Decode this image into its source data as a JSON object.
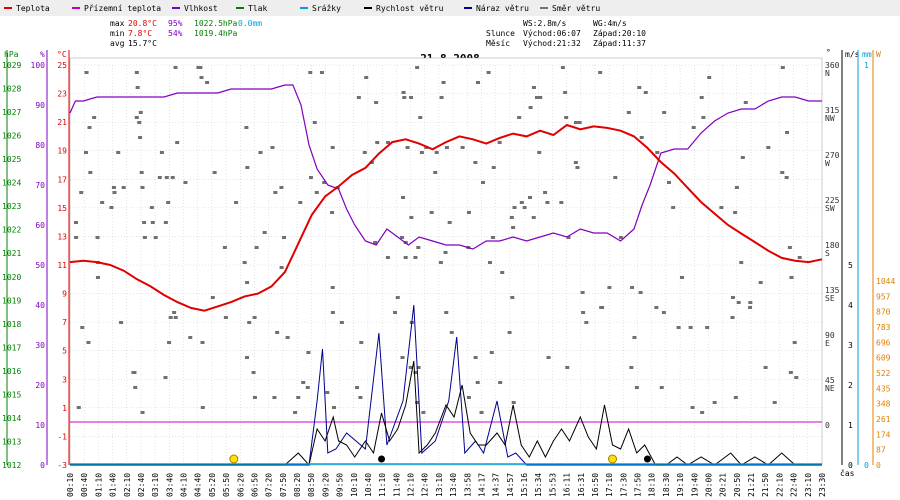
{
  "chart_data": {
    "type": "line",
    "title": "21.8.2008",
    "xlabel": "čas",
    "legend": [
      {
        "name": "Teplota",
        "color": "#e00000"
      },
      {
        "name": "Přízemní teplota",
        "color": "#c000c0"
      },
      {
        "name": "Vlhkost",
        "color": "#8000c0"
      },
      {
        "name": "Tlak",
        "color": "#008000"
      },
      {
        "name": "Srážky",
        "color": "#00a0e0"
      },
      {
        "name": "Rychlost větru",
        "color": "#000000"
      },
      {
        "name": "Náraz větru",
        "color": "#000090"
      },
      {
        "name": "Směr větru",
        "color": "#707070"
      }
    ],
    "stats": {
      "max_label": "max",
      "max_temp": "20.8°C",
      "max_hum": "95%",
      "max_press": "1022.5hPa",
      "max_rain": "0.0mm",
      "min_label": "min",
      "min_temp": "7.8°C",
      "min_hum": "54%",
      "min_press": "1019.4hPa",
      "avg_label": "avg",
      "avg_temp": "15.7°C",
      "ws": "WS:2.8m/s",
      "wg": "WG:4m/s",
      "sun_label": "Slunce",
      "sun_rise": "Východ:06:07",
      "sun_set": "Západ:20:10",
      "moon_label": "Měsíc",
      "moon_rise": "Východ:21:32",
      "moon_set": "Západ:11:37"
    },
    "axes": {
      "hpa_title": "hPa",
      "hpa_ticks": [
        "1029",
        "1028",
        "1027",
        "1026",
        "1025",
        "1024",
        "1023",
        "1022",
        "1021",
        "1020",
        "1019",
        "1018",
        "1017",
        "1016",
        "1015",
        "1014",
        "1013",
        "1012"
      ],
      "pct_title": "%",
      "pct_ticks": [
        "100",
        "90",
        "80",
        "70",
        "60",
        "50",
        "40",
        "30",
        "20",
        "10",
        "0"
      ],
      "temp_title": "°C",
      "temp_ticks": [
        "25",
        "23",
        "21",
        "19",
        "17",
        "15",
        "13",
        "11",
        "9",
        "7",
        "5",
        "3",
        "1",
        "-1",
        "-3"
      ],
      "dir_title": "°",
      "dir_ticks": [
        "360",
        "315",
        "270",
        "225",
        "180",
        "135",
        "90",
        "45",
        "0"
      ],
      "dir_names": [
        "N",
        "NW",
        "W",
        "SW",
        "S",
        "SE",
        "E",
        "NE"
      ],
      "ms_title": "m/s",
      "ms_ticks": [
        "5",
        "4",
        "3",
        "2",
        "1",
        "0"
      ],
      "mm_title": "mm",
      "mm_ticks": [
        "1",
        "0"
      ],
      "w_title": "W",
      "w_ticks": [
        "1044",
        "957",
        "870",
        "783",
        "696",
        "609",
        "522",
        "435",
        "348",
        "261",
        "174",
        "87",
        "0"
      ]
    },
    "x_ticks": [
      "00:10",
      "00:40",
      "01:10",
      "01:40",
      "02:10",
      "02:40",
      "03:10",
      "03:40",
      "04:10",
      "04:40",
      "05:20",
      "05:50",
      "06:20",
      "06:50",
      "07:20",
      "07:50",
      "08:20",
      "08:50",
      "09:20",
      "09:50",
      "10:10",
      "10:40",
      "11:10",
      "11:40",
      "12:10",
      "12:40",
      "13:10",
      "13:40",
      "13:58",
      "14:17",
      "14:37",
      "14:57",
      "15:16",
      "15:34",
      "15:53",
      "16:11",
      "16:31",
      "16:50",
      "17:10",
      "17:30",
      "17:50",
      "18:10",
      "18:30",
      "19:10",
      "19:40",
      "20:00",
      "20:21",
      "20:50",
      "21:21",
      "21:50",
      "22:10",
      "22:40",
      "23:10",
      "23:30"
    ],
    "ylim_temp": [
      -3,
      25
    ],
    "ylim_humidity": [
      0,
      100
    ],
    "ylim_wind": [
      0,
      5
    ],
    "temperature": [
      [
        0,
        11.2
      ],
      [
        0.5,
        11.3
      ],
      [
        1,
        11.2
      ],
      [
        1.5,
        11
      ],
      [
        2,
        10.6
      ],
      [
        2.5,
        10
      ],
      [
        3,
        9.5
      ],
      [
        3.5,
        8.9
      ],
      [
        4,
        8.4
      ],
      [
        4.5,
        8.0
      ],
      [
        5,
        7.8
      ],
      [
        5.5,
        8.1
      ],
      [
        6,
        8.4
      ],
      [
        6.5,
        8.8
      ],
      [
        7,
        9.0
      ],
      [
        7.5,
        9.5
      ],
      [
        8,
        10.5
      ],
      [
        8.5,
        12.5
      ],
      [
        9,
        14.5
      ],
      [
        9.5,
        15.8
      ],
      [
        10,
        16.5
      ],
      [
        10.5,
        17.3
      ],
      [
        11,
        17.8
      ],
      [
        11.5,
        18.8
      ],
      [
        12,
        19.6
      ],
      [
        12.5,
        19.8
      ],
      [
        13,
        19.5
      ],
      [
        13.5,
        19.1
      ],
      [
        14,
        19.6
      ],
      [
        14.5,
        20.0
      ],
      [
        15,
        19.8
      ],
      [
        15.5,
        19.5
      ],
      [
        16,
        19.9
      ],
      [
        16.5,
        20.2
      ],
      [
        17,
        20.0
      ],
      [
        17.5,
        20.4
      ],
      [
        18,
        20.1
      ],
      [
        18.5,
        20.8
      ],
      [
        19,
        20.5
      ],
      [
        19.5,
        20.7
      ],
      [
        20,
        20.6
      ],
      [
        20.5,
        20.4
      ],
      [
        21,
        20.0
      ],
      [
        21.5,
        19.2
      ],
      [
        22,
        18.2
      ],
      [
        22.5,
        17.4
      ],
      [
        23,
        16.4
      ],
      [
        23.5,
        15.4
      ],
      [
        24,
        14.6
      ],
      [
        24.5,
        13.8
      ],
      [
        25,
        13.2
      ],
      [
        25.5,
        12.6
      ],
      [
        26,
        12.0
      ],
      [
        26.5,
        11.5
      ],
      [
        27,
        11.3
      ],
      [
        27.5,
        11.2
      ],
      [
        28,
        11.4
      ]
    ],
    "humidity": [
      [
        0,
        88
      ],
      [
        0.2,
        91
      ],
      [
        0.5,
        91
      ],
      [
        1,
        92
      ],
      [
        1.5,
        92
      ],
      [
        2,
        92
      ],
      [
        2.5,
        92
      ],
      [
        3,
        92
      ],
      [
        3.5,
        92
      ],
      [
        4,
        93
      ],
      [
        4.5,
        93
      ],
      [
        5,
        93
      ],
      [
        5.5,
        93
      ],
      [
        6,
        94
      ],
      [
        6.5,
        94
      ],
      [
        7,
        94
      ],
      [
        7.5,
        94
      ],
      [
        8,
        95
      ],
      [
        8.3,
        95
      ],
      [
        8.6,
        90
      ],
      [
        8.9,
        80
      ],
      [
        9.2,
        74
      ],
      [
        9.6,
        70
      ],
      [
        10,
        69
      ],
      [
        10.3,
        64
      ],
      [
        10.6,
        60
      ],
      [
        11,
        56
      ],
      [
        11.4,
        55
      ],
      [
        11.8,
        59
      ],
      [
        12.2,
        57
      ],
      [
        12.6,
        55
      ],
      [
        13,
        57
      ],
      [
        13.5,
        56
      ],
      [
        14,
        55
      ],
      [
        14.5,
        55
      ],
      [
        15,
        54
      ],
      [
        15.5,
        56
      ],
      [
        16,
        56
      ],
      [
        16.5,
        57
      ],
      [
        17,
        56
      ],
      [
        17.5,
        57
      ],
      [
        18,
        58
      ],
      [
        18.5,
        57
      ],
      [
        19,
        59
      ],
      [
        19.5,
        58
      ],
      [
        20,
        58
      ],
      [
        20.5,
        56
      ],
      [
        21,
        59
      ],
      [
        21.3,
        65
      ],
      [
        21.6,
        70
      ],
      [
        22,
        78
      ],
      [
        22.5,
        79
      ],
      [
        23,
        79
      ],
      [
        23.5,
        83
      ],
      [
        24,
        86
      ],
      [
        24.5,
        88
      ],
      [
        25,
        89
      ],
      [
        25.5,
        89
      ],
      [
        26,
        91
      ],
      [
        26.5,
        92
      ],
      [
        27,
        92
      ],
      [
        27.5,
        91
      ],
      [
        28,
        91
      ]
    ],
    "wind_speed": [
      [
        0,
        0
      ],
      [
        6,
        0
      ],
      [
        7,
        0
      ],
      [
        8,
        0
      ],
      [
        8.5,
        0.3
      ],
      [
        8.9,
        0
      ],
      [
        9.2,
        0.9
      ],
      [
        9.5,
        0.6
      ],
      [
        9.8,
        1.2
      ],
      [
        10,
        0.6
      ],
      [
        10.3,
        0.5
      ],
      [
        10.6,
        0.2
      ],
      [
        11,
        0.6
      ],
      [
        11.3,
        0.3
      ],
      [
        11.6,
        1.3
      ],
      [
        11.9,
        0.6
      ],
      [
        12.2,
        0.9
      ],
      [
        12.5,
        1.5
      ],
      [
        12.8,
        2.6
      ],
      [
        13,
        0.3
      ],
      [
        13.3,
        0.5
      ],
      [
        13.6,
        0.8
      ],
      [
        14,
        1.5
      ],
      [
        14.3,
        1.2
      ],
      [
        14.6,
        2.0
      ],
      [
        14.9,
        0.8
      ],
      [
        15.2,
        0.5
      ],
      [
        15.5,
        0.5
      ],
      [
        15.9,
        0.8
      ],
      [
        16.2,
        0.5
      ],
      [
        16.5,
        1.5
      ],
      [
        16.8,
        0.5
      ],
      [
        17.1,
        0.2
      ],
      [
        17.4,
        0.6
      ],
      [
        17.7,
        0.2
      ],
      [
        18,
        0.6
      ],
      [
        18.3,
        0.9
      ],
      [
        18.6,
        0.6
      ],
      [
        19,
        1.2
      ],
      [
        19.3,
        0.7
      ],
      [
        19.6,
        0.4
      ],
      [
        19.9,
        1.5
      ],
      [
        20.2,
        0.5
      ],
      [
        20.5,
        0.4
      ],
      [
        20.8,
        0.9
      ],
      [
        21.1,
        0.3
      ],
      [
        21.4,
        0.5
      ],
      [
        21.8,
        0.0
      ],
      [
        22.2,
        0
      ],
      [
        22.6,
        0.2
      ],
      [
        23,
        0
      ],
      [
        23.5,
        0.2
      ],
      [
        24,
        0
      ],
      [
        24.6,
        0.3
      ],
      [
        25,
        0
      ],
      [
        25.5,
        0.2
      ],
      [
        26,
        0
      ],
      [
        26.5,
        0.3
      ],
      [
        27,
        0
      ],
      [
        27.5,
        0
      ],
      [
        28,
        0
      ]
    ],
    "wind_gust": [
      [
        0,
        0
      ],
      [
        8.9,
        0
      ],
      [
        9.2,
        1.6
      ],
      [
        9.4,
        2.9
      ],
      [
        9.6,
        0.3
      ],
      [
        9.9,
        0.4
      ],
      [
        10.3,
        0.8
      ],
      [
        11,
        0.4
      ],
      [
        11.5,
        3.3
      ],
      [
        11.8,
        0.5
      ],
      [
        12.4,
        1.6
      ],
      [
        12.8,
        4.0
      ],
      [
        13.1,
        0.3
      ],
      [
        13.6,
        0.6
      ],
      [
        14.1,
        1.6
      ],
      [
        14.4,
        3.2
      ],
      [
        14.7,
        0.3
      ],
      [
        15.1,
        0.6
      ],
      [
        15.4,
        0.3
      ],
      [
        15.9,
        1.6
      ],
      [
        16.3,
        0.2
      ],
      [
        16.6,
        0.3
      ],
      [
        17,
        0
      ],
      [
        28,
        0
      ]
    ],
    "sun_markers": [
      6.1,
      20.2
    ],
    "moon_markers": [
      11.6,
      21.5
    ]
  }
}
